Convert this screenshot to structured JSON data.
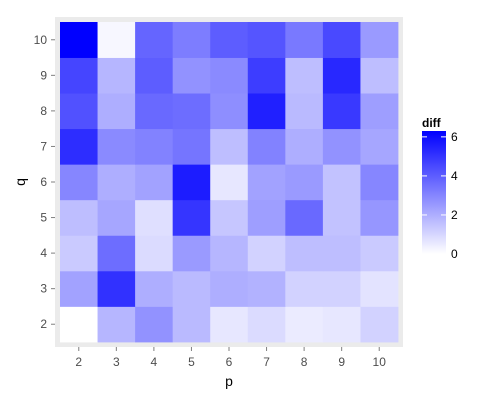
{
  "chart_data": {
    "type": "heatmap",
    "xlabel": "p",
    "ylabel": "q",
    "x": [
      2,
      3,
      4,
      5,
      6,
      7,
      8,
      9,
      10
    ],
    "y": [
      2,
      3,
      4,
      5,
      6,
      7,
      8,
      9,
      10
    ],
    "values": [
      [
        0.0,
        1.8,
        2.7,
        1.7,
        0.6,
        0.9,
        0.5,
        0.6,
        1.1
      ],
      [
        2.3,
        5.1,
        2.0,
        1.7,
        2.0,
        1.9,
        1.1,
        1.1,
        0.7
      ],
      [
        1.3,
        3.6,
        0.9,
        2.5,
        1.8,
        1.1,
        1.6,
        1.6,
        1.3
      ],
      [
        1.6,
        2.2,
        0.8,
        5.0,
        1.4,
        2.4,
        3.7,
        1.5,
        2.6
      ],
      [
        3.0,
        2.0,
        2.3,
        5.6,
        0.6,
        2.3,
        2.5,
        1.5,
        3.0
      ],
      [
        5.2,
        2.9,
        3.1,
        3.4,
        1.6,
        3.1,
        2.0,
        2.7,
        2.2
      ],
      [
        4.3,
        2.0,
        3.7,
        3.6,
        2.8,
        5.5,
        1.7,
        4.9,
        2.4
      ],
      [
        4.6,
        1.8,
        4.0,
        2.7,
        2.9,
        4.8,
        1.6,
        5.3,
        1.6
      ],
      [
        6.3,
        0.2,
        3.8,
        3.2,
        4.0,
        4.2,
        3.3,
        4.5,
        2.5
      ]
    ],
    "color_range": [
      0,
      6.3
    ],
    "color_low": "#ffffff",
    "color_high": "#0000ff",
    "legend": {
      "title": "diff",
      "ticks": [
        "0",
        "2",
        "4",
        "6"
      ],
      "tick_values": [
        0,
        2,
        4,
        6
      ],
      "position": "right"
    },
    "grid": true
  }
}
